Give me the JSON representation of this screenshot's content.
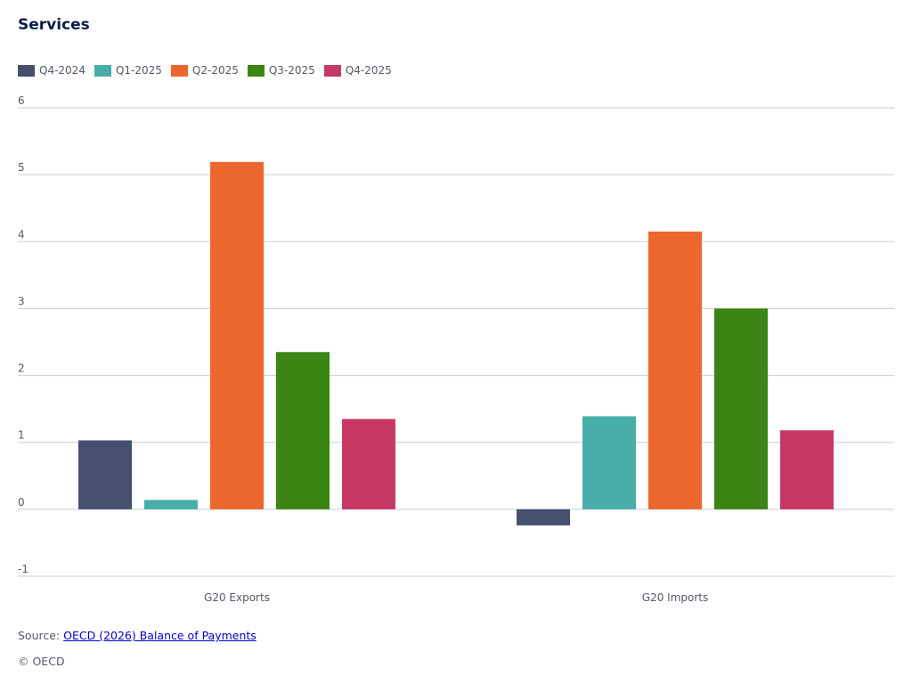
{
  "chart_data": {
    "type": "bar",
    "title": "Services",
    "categories": [
      "G20 Exports",
      "G20 Imports"
    ],
    "series": [
      {
        "name": "Q4-2024",
        "color": "#454f6e",
        "values": [
          1.03,
          -0.24
        ]
      },
      {
        "name": "Q1-2025",
        "color": "#47aea9",
        "values": [
          0.14,
          1.39
        ]
      },
      {
        "name": "Q2-2025",
        "color": "#ec672d",
        "values": [
          5.19,
          4.15
        ]
      },
      {
        "name": "Q3-2025",
        "color": "#3b8515",
        "values": [
          2.35,
          3.0
        ]
      },
      {
        "name": "Q4-2025",
        "color": "#c63963",
        "values": [
          1.35,
          1.18
        ]
      }
    ],
    "ylim": [
      -1,
      6
    ],
    "yticks": [
      6,
      5,
      4,
      3,
      2,
      1,
      0,
      -1
    ],
    "grid": true,
    "legend_position": "top-left"
  },
  "footer": {
    "source_prefix": "Source: ",
    "source_link": "OECD (2026) Balance of Payments",
    "copyright": "© OECD"
  },
  "colors": {
    "title": "#0b1e4a",
    "gridline": "#c8ccd6",
    "axis_text": "#555a66",
    "link": "#0000cc"
  }
}
